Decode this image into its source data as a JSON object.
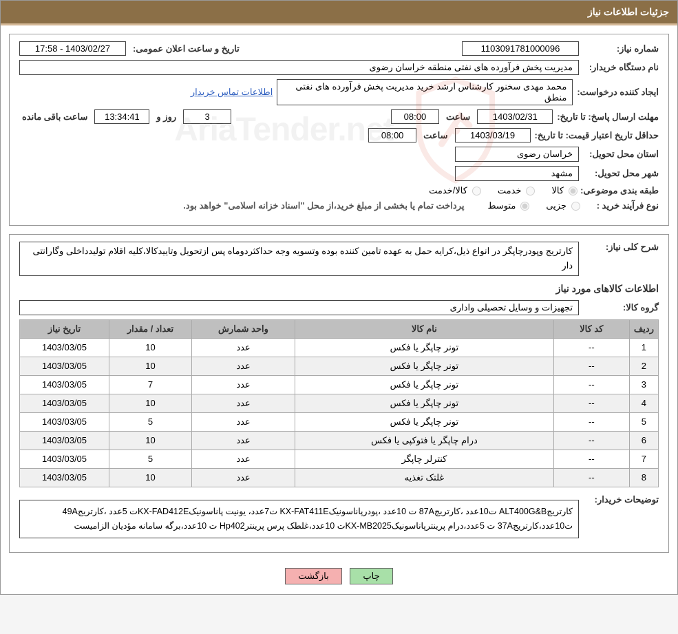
{
  "title": "جزئیات اطلاعات نیاز",
  "fields": {
    "need_no_label": "شماره نیاز:",
    "need_no": "1103091781000096",
    "announce_label": "تاریخ و ساعت اعلان عمومی:",
    "announce_value": "1403/02/27 - 17:58",
    "buyer_org_label": "نام دستگاه خریدار:",
    "buyer_org": "مدیریت پخش فرآورده های نفتی منطقه خراسان رضوی",
    "requester_label": "ایجاد کننده درخواست:",
    "requester": "محمد مهدی سخنور کارشناس ارشد خرید مدیریت پخش فرآورده های نفتی منطق",
    "contact_link": "اطلاعات تماس خریدار",
    "deadline_label": "مهلت ارسال پاسخ:",
    "until_date_label": "تا تاریخ:",
    "deadline_date": "1403/02/31",
    "time_label": "ساعت",
    "deadline_time": "08:00",
    "days_left": "3",
    "days_and_label": "روز و",
    "countdown": "13:34:41",
    "remaining_label": "ساعت باقی مانده",
    "min_valid_label": "حداقل تاریخ اعتبار قیمت:",
    "valid_date": "1403/03/19",
    "valid_time": "08:00",
    "province_label": "استان محل تحویل:",
    "province": "خراسان رضوی",
    "city_label": "شهر محل تحویل:",
    "city": "مشهد",
    "classification_label": "طبقه بندی موضوعی:",
    "opt_goods": "کالا",
    "opt_service": "خدمت",
    "opt_goods_service": "کالا/خدمت",
    "process_type_label": "نوع فرآیند خرید :",
    "opt_partial": "جزیی",
    "opt_medium": "متوسط",
    "payment_note": "پرداخت تمام یا بخشی از مبلغ خرید،از محل \"اسناد خزانه اسلامی\" خواهد بود.",
    "general_desc_label": "شرح کلی نیاز:",
    "general_desc": "کارتریج وپودرچاپگر در انواع ذیل،کرایه حمل به عهده تامین کننده بوده وتسویه وجه حداکثردوماه پس ازتحویل وتاییدکالا،کلیه اقلام تولیدداخلی وگارانتی دار",
    "items_section_title": "اطلاعات کالاهای مورد نیاز",
    "group_label": "گروه کالا:",
    "group_value": "تجهیزات و وسایل تحصیلی واداری",
    "buyer_notes_label": "توضیحات خریدار:",
    "buyer_notes": "کارتریجALT400G&B ت10عدد ،کارتریج87A ت 10عدد ،پودرپاناسونیکKX-FAT411E ت7عدد، یونیت پاناسونیکKX-FAD412Eت 5عدد ،کارتریج49A ت10عدد،کارتریج37A ت 5عدد،درام پرینترپاناسونیکKX-MB2025ت 10عدد،غلطک پرس پرینترHp402 ت 10عدد،برگه سامانه مؤدیان الزامیست"
  },
  "table": {
    "headers": {
      "idx": "ردیف",
      "code": "کد کالا",
      "name": "نام کالا",
      "unit": "واحد شمارش",
      "qty": "تعداد / مقدار",
      "date": "تاریخ نیاز"
    },
    "rows": [
      {
        "idx": "1",
        "code": "--",
        "name": "تونر چاپگر یا فکس",
        "unit": "عدد",
        "qty": "10",
        "date": "1403/03/05"
      },
      {
        "idx": "2",
        "code": "--",
        "name": "تونر چاپگر یا فکس",
        "unit": "عدد",
        "qty": "10",
        "date": "1403/03/05"
      },
      {
        "idx": "3",
        "code": "--",
        "name": "تونر چاپگر یا فکس",
        "unit": "عدد",
        "qty": "7",
        "date": "1403/03/05"
      },
      {
        "idx": "4",
        "code": "--",
        "name": "تونر چاپگر یا فکس",
        "unit": "عدد",
        "qty": "10",
        "date": "1403/03/05"
      },
      {
        "idx": "5",
        "code": "--",
        "name": "تونر چاپگر یا فکس",
        "unit": "عدد",
        "qty": "5",
        "date": "1403/03/05"
      },
      {
        "idx": "6",
        "code": "--",
        "name": "درام چاپگر یا فتوکپی یا فکس",
        "unit": "عدد",
        "qty": "10",
        "date": "1403/03/05"
      },
      {
        "idx": "7",
        "code": "--",
        "name": "کنترلر چاپگر",
        "unit": "عدد",
        "qty": "5",
        "date": "1403/03/05"
      },
      {
        "idx": "8",
        "code": "--",
        "name": "غلتک تغذیه",
        "unit": "عدد",
        "qty": "10",
        "date": "1403/03/05"
      }
    ]
  },
  "buttons": {
    "print": "چاپ",
    "back": "بازگشت"
  },
  "watermark_text": "AriaTender.net",
  "colors": {
    "title_bg": "#8b6f47",
    "title_border": "#d4b896",
    "th_bg": "#bfbfbf",
    "btn_print_bg": "#a8e0a8",
    "btn_back_bg": "#f5b0b0",
    "link": "#3060c0",
    "wm_stroke": "#d94f3a"
  }
}
